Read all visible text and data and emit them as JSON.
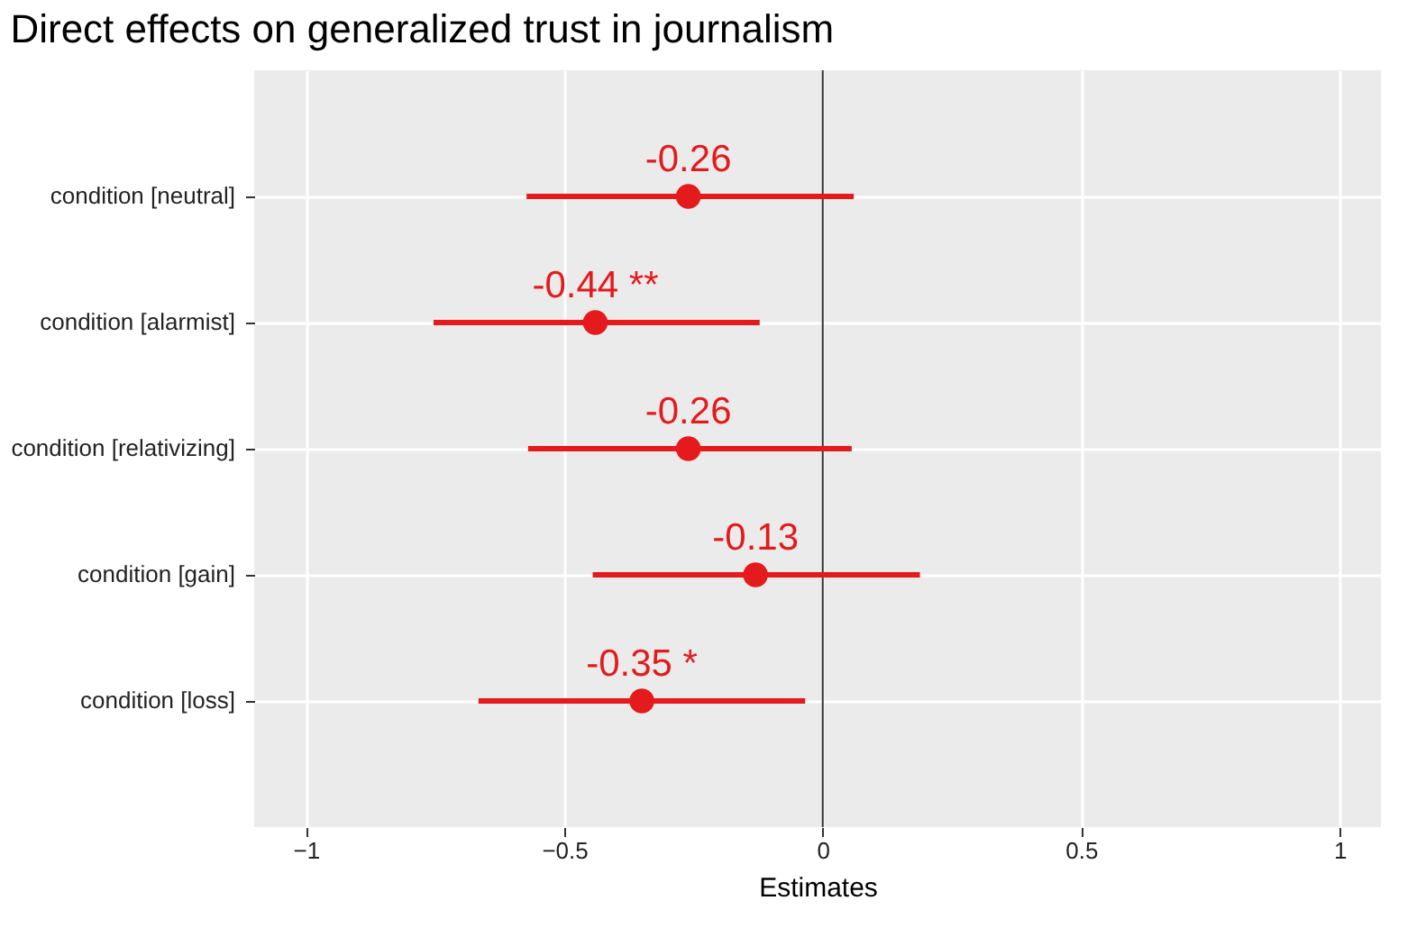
{
  "chart_data": {
    "type": "scatter",
    "orientation": "horizontal",
    "title": "Direct effects on generalized trust in journalism",
    "xlabel": "Estimates",
    "categories": [
      "condition [neutral]",
      "condition [alarmist]",
      "condition [relativizing]",
      "condition [gain]",
      "condition [loss]"
    ],
    "series": [
      {
        "color": "#e41a1c",
        "values": [
          -0.26,
          -0.44,
          -0.26,
          -0.13,
          -0.35
        ],
        "errors": [
          [
            -0.573,
            0.06
          ],
          [
            -0.753,
            -0.122
          ],
          [
            -0.57,
            0.056
          ],
          [
            -0.445,
            0.188
          ],
          [
            -0.666,
            -0.034
          ]
        ],
        "value_labels": [
          "-0.26",
          "-0.44 **",
          "-0.26",
          "-0.13",
          "-0.35 *"
        ]
      }
    ],
    "xlim": [
      -1.1,
      1.08
    ],
    "xticks": [
      -1,
      -0.5,
      0,
      0.5,
      1
    ],
    "grid": true,
    "marker": "circle",
    "ref_lines": [
      {
        "axis": "x",
        "value": 0,
        "color": "#333333"
      }
    ]
  }
}
